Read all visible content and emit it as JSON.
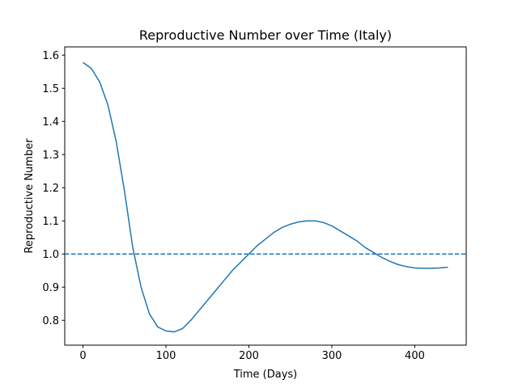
{
  "chart_data": {
    "type": "line",
    "title": "Reproductive Number over Time (Italy)",
    "xlabel": "Time (Days)",
    "ylabel": "Reproductive Number",
    "xlim": [
      -22,
      462
    ],
    "ylim": [
      0.725,
      1.625
    ],
    "xticks": [
      0,
      100,
      200,
      300,
      400
    ],
    "yticks": [
      0.8,
      0.9,
      1.0,
      1.1,
      1.2,
      1.3,
      1.4,
      1.5,
      1.6
    ],
    "xtick_labels": [
      "0",
      "100",
      "200",
      "300",
      "400"
    ],
    "ytick_labels": [
      "0.8",
      "0.9",
      "1.0",
      "1.1",
      "1.2",
      "1.3",
      "1.4",
      "1.5",
      "1.6"
    ],
    "grid": false,
    "colors": {
      "series": "#1f77b4",
      "axes": "#000000"
    },
    "series": [
      {
        "style": "solid",
        "x": [
          0,
          10,
          20,
          30,
          40,
          50,
          60,
          70,
          80,
          90,
          100,
          110,
          120,
          130,
          140,
          150,
          160,
          170,
          180,
          190,
          200,
          210,
          220,
          230,
          240,
          250,
          260,
          270,
          280,
          290,
          300,
          310,
          320,
          330,
          340,
          350,
          360,
          370,
          380,
          390,
          400,
          410,
          420,
          430,
          440
        ],
        "y": [
          1.578,
          1.56,
          1.52,
          1.45,
          1.34,
          1.19,
          1.02,
          0.9,
          0.82,
          0.78,
          0.768,
          0.765,
          0.775,
          0.8,
          0.83,
          0.86,
          0.89,
          0.92,
          0.95,
          0.975,
          1.0,
          1.025,
          1.045,
          1.065,
          1.08,
          1.09,
          1.097,
          1.1,
          1.1,
          1.095,
          1.085,
          1.07,
          1.055,
          1.04,
          1.02,
          1.005,
          0.99,
          0.978,
          0.968,
          0.962,
          0.958,
          0.957,
          0.957,
          0.958,
          0.96
        ]
      },
      {
        "style": "dashed",
        "x": [
          -22,
          462
        ],
        "y": [
          1.0,
          1.0
        ]
      }
    ]
  }
}
